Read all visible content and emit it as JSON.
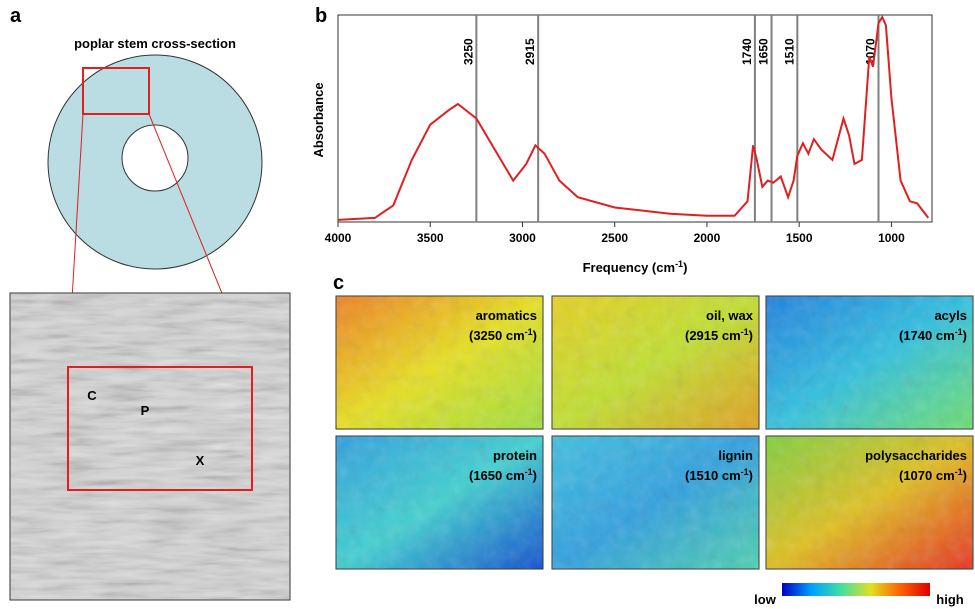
{
  "panel_a": {
    "letter": "a",
    "title": "poplar stem cross-section",
    "regions": [
      "C",
      "P",
      "X"
    ]
  },
  "chart_data": {
    "type": "line",
    "letter": "b",
    "ylabel": "Absorbance",
    "xlabel_parts": [
      "Frequency (cm",
      "-1",
      ")"
    ],
    "color": "#e02020",
    "xlim": [
      4000,
      780
    ],
    "ylim": [
      0,
      1
    ],
    "xticks": [
      4000,
      3500,
      3000,
      2500,
      2000,
      1500,
      1000
    ],
    "vlines": [
      3250,
      2915,
      1740,
      1650,
      1510,
      1070
    ],
    "vline_color": "#808080",
    "x": [
      4000,
      3800,
      3700,
      3600,
      3500,
      3400,
      3350,
      3250,
      3150,
      3050,
      2980,
      2930,
      2880,
      2800,
      2700,
      2500,
      2200,
      2000,
      1850,
      1780,
      1750,
      1730,
      1700,
      1670,
      1640,
      1600,
      1560,
      1530,
      1510,
      1480,
      1450,
      1420,
      1380,
      1320,
      1260,
      1230,
      1200,
      1160,
      1120,
      1100,
      1070,
      1050,
      1030,
      1000,
      950,
      900,
      860,
      800
    ],
    "values": [
      0.01,
      0.02,
      0.08,
      0.3,
      0.47,
      0.54,
      0.57,
      0.5,
      0.35,
      0.2,
      0.28,
      0.37,
      0.33,
      0.2,
      0.12,
      0.07,
      0.04,
      0.03,
      0.03,
      0.1,
      0.37,
      0.3,
      0.17,
      0.2,
      0.19,
      0.22,
      0.12,
      0.2,
      0.32,
      0.38,
      0.33,
      0.4,
      0.35,
      0.3,
      0.5,
      0.42,
      0.28,
      0.3,
      0.8,
      0.75,
      0.96,
      0.99,
      0.95,
      0.6,
      0.2,
      0.1,
      0.09,
      0.02
    ]
  },
  "panel_c": {
    "letter": "c",
    "maps": [
      {
        "name": "aromatics",
        "band": [
          "(3250 cm",
          "-1",
          ")"
        ],
        "colors": [
          "#f08020",
          "#e8e020",
          "#a0e040"
        ]
      },
      {
        "name": "oil, wax",
        "band": [
          "(2915 cm",
          "-1",
          ")"
        ],
        "colors": [
          "#e8d020",
          "#c0e030",
          "#e0a020"
        ]
      },
      {
        "name": "acyls",
        "band": [
          "(1740 cm",
          "-1",
          ")"
        ],
        "colors": [
          "#2080e0",
          "#30c0e0",
          "#70e070"
        ]
      },
      {
        "name": "protein",
        "band": [
          "(1650 cm",
          "-1",
          ")"
        ],
        "colors": [
          "#30a0e0",
          "#40d0d0",
          "#1050d0"
        ]
      },
      {
        "name": "lignin",
        "band": [
          "(1510 cm",
          "-1",
          ")"
        ],
        "colors": [
          "#40c0e0",
          "#30a0e0",
          "#50d0b0"
        ]
      },
      {
        "name": "polysaccharides",
        "band": [
          "(1070 cm",
          "-1",
          ")"
        ],
        "colors": [
          "#80d040",
          "#e0c020",
          "#e83020"
        ]
      }
    ],
    "scale_low": "low",
    "scale_high": "high",
    "scale_colors": [
      "#0000c0",
      "#00a0ff",
      "#40e0a0",
      "#e0e020",
      "#ff6000",
      "#e00000"
    ]
  }
}
